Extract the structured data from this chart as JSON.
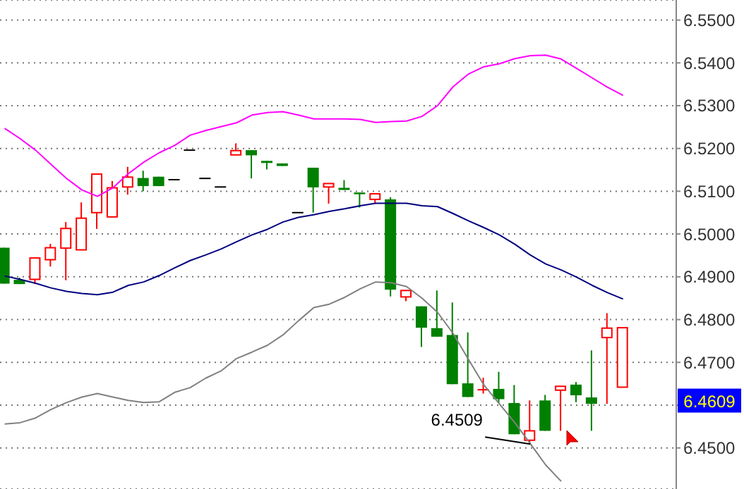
{
  "chart_data": {
    "type": "candlestick",
    "categories": [
      null,
      null,
      null,
      null,
      null,
      null,
      null,
      null,
      null,
      null,
      null,
      null,
      null,
      null,
      null,
      null,
      null,
      null,
      null,
      null,
      null,
      null,
      null,
      null,
      null,
      null,
      null,
      null,
      null,
      null,
      null,
      null,
      null,
      null,
      null,
      null,
      null,
      null,
      null,
      null,
      null
    ],
    "ohlc": [
      [
        6.4968,
        6.4968,
        6.4884,
        6.4884
      ],
      [
        6.4893,
        6.4898,
        6.4883,
        6.4883
      ],
      [
        6.4894,
        6.4944,
        6.4883,
        6.4944
      ],
      [
        6.494,
        6.4977,
        6.4924,
        6.4968
      ],
      [
        6.4967,
        6.5028,
        6.4892,
        6.5013
      ],
      [
        6.4963,
        6.5074,
        6.4963,
        6.5037
      ],
      [
        6.505,
        6.514,
        6.5012,
        6.514
      ],
      [
        6.504,
        6.5124,
        6.504,
        6.5108
      ],
      [
        6.511,
        6.5157,
        6.5092,
        6.5133
      ],
      [
        6.5131,
        6.5148,
        6.51,
        6.5112
      ],
      [
        6.5134,
        6.5134,
        6.5112,
        6.5112
      ],
      [
        6.5127,
        6.5127,
        6.5127,
        6.5127
      ],
      [
        6.5196,
        6.5196,
        6.5196,
        6.5196
      ],
      [
        6.513,
        6.513,
        6.513,
        6.513
      ],
      [
        6.511,
        6.511,
        6.511,
        6.511
      ],
      [
        6.5185,
        6.5212,
        6.5185,
        6.5195
      ],
      [
        6.5196,
        6.5196,
        6.513,
        6.5184
      ],
      [
        6.5171,
        6.5171,
        6.5151,
        6.5166
      ],
      [
        6.5165,
        6.5165,
        6.5159,
        6.5159
      ],
      [
        6.505,
        6.505,
        6.505,
        6.505
      ],
      [
        6.5155,
        6.5155,
        6.505,
        6.5109
      ],
      [
        6.511,
        6.5118,
        6.5071,
        6.5118
      ],
      [
        6.5108,
        6.5126,
        6.5103,
        6.5103
      ],
      [
        6.5097,
        6.5097,
        6.5062,
        6.5093
      ],
      [
        6.5081,
        6.5094,
        6.5071,
        6.5094
      ],
      [
        6.5081,
        6.5086,
        6.4854,
        6.487
      ],
      [
        6.4853,
        6.4868,
        6.4843,
        6.4868
      ],
      [
        6.4831,
        6.4831,
        6.4736,
        6.4781
      ],
      [
        6.478,
        6.4868,
        6.476,
        6.476
      ],
      [
        6.4764,
        6.484,
        6.4649,
        6.4649
      ],
      [
        6.4651,
        6.477,
        6.4619,
        6.4619
      ],
      [
        6.4636,
        6.4664,
        6.4627,
        6.4636
      ],
      [
        6.4638,
        6.4678,
        6.4605,
        6.4614
      ],
      [
        6.4605,
        6.4647,
        6.4532,
        6.4532
      ],
      [
        6.4518,
        6.4611,
        6.4509,
        6.454
      ],
      [
        6.4611,
        6.4624,
        6.454,
        6.454
      ],
      [
        6.4635,
        6.4644,
        6.454,
        6.4644
      ],
      [
        6.4648,
        6.4654,
        6.4607,
        6.4623
      ],
      [
        6.4618,
        6.4728,
        6.454,
        6.4603
      ],
      [
        6.4758,
        6.4815,
        6.4603,
        6.478
      ],
      [
        6.4642,
        6.4781,
        6.4642,
        6.4781
      ]
    ],
    "colors": [
      "#008000",
      "#008000",
      "#ff0000",
      "#ff0000",
      "#ff0000",
      "#ff0000",
      "#ff0000",
      "#ff0000",
      "#ff0000",
      "#008000",
      "#008000",
      "#000000",
      "#000000",
      "#000000",
      "#000000",
      "#ff0000",
      "#008000",
      "#008000",
      "#008000",
      "#000000",
      "#008000",
      "#ff0000",
      "#008000",
      "#008000",
      "#ff0000",
      "#008000",
      "#ff0000",
      "#008000",
      "#008000",
      "#008000",
      "#008000",
      "#ff0000",
      "#008000",
      "#008000",
      "#ff0000",
      "#008000",
      "#ff0000",
      "#008000",
      "#008000",
      "#ff0000",
      "#ff0000"
    ],
    "series": [
      {
        "type": "line",
        "color": "#ff00ff",
        "values": [
          6.5247,
          6.5223,
          6.5196,
          6.5163,
          6.513,
          6.5103,
          6.5088,
          6.5108,
          6.5141,
          6.5168,
          6.519,
          6.5207,
          6.5231,
          6.5242,
          6.5251,
          6.526,
          6.5278,
          6.5284,
          6.5286,
          6.5278,
          6.5269,
          6.5269,
          6.5269,
          6.5268,
          6.5261,
          6.5263,
          6.5264,
          6.5275,
          6.53,
          6.5344,
          6.5374,
          6.5391,
          6.5398,
          6.541,
          6.5417,
          6.5418,
          6.5409,
          6.5387,
          6.5365,
          6.5343,
          6.5324
        ]
      },
      {
        "type": "line",
        "color": "#000080",
        "values": [
          6.4902,
          6.4894,
          6.4885,
          6.4874,
          6.4866,
          6.4861,
          6.4858,
          6.4864,
          6.488,
          6.4888,
          6.4903,
          6.4921,
          6.4938,
          6.4951,
          6.4965,
          6.4982,
          6.4998,
          6.5011,
          6.5028,
          6.5039,
          6.5045,
          6.5053,
          6.5059,
          6.5066,
          6.5072,
          6.5072,
          6.5072,
          6.5066,
          6.5064,
          6.5048,
          6.5031,
          6.5015,
          6.4998,
          6.4976,
          6.4951,
          6.493,
          6.4916,
          6.4899,
          6.488,
          6.4863,
          6.4848
        ]
      },
      {
        "type": "line",
        "color": "#808080",
        "values": [
          6.4556,
          6.4559,
          6.457,
          6.459,
          6.4606,
          6.4619,
          6.4627,
          6.4619,
          6.4611,
          6.4606,
          6.4608,
          6.463,
          6.4641,
          6.4663,
          6.468,
          6.4709,
          6.4724,
          6.474,
          6.4764,
          6.4797,
          6.4828,
          6.4836,
          6.4852,
          6.4872,
          6.4888,
          6.4886,
          6.4877,
          6.485,
          6.4817,
          6.4768,
          6.4707,
          6.4647,
          6.4603,
          6.4559,
          6.451,
          6.446,
          6.4422,
          null,
          null,
          null,
          null
        ]
      }
    ],
    "ylim": [
      6.4404,
      6.5547
    ],
    "yticks": [
      {
        "value": 6.45,
        "label": "6.4500"
      },
      {
        "value": 6.46,
        "label": null
      },
      {
        "value": 6.47,
        "label": "6.4700"
      },
      {
        "value": 6.48,
        "label": "6.4800"
      },
      {
        "value": 6.49,
        "label": "6.4900"
      },
      {
        "value": 6.5,
        "label": "6.5000"
      },
      {
        "value": 6.51,
        "label": "6.5100"
      },
      {
        "value": 6.52,
        "label": "6.5200"
      },
      {
        "value": 6.53,
        "label": "6.5300"
      },
      {
        "value": 6.54,
        "label": "6.5400"
      },
      {
        "value": 6.55,
        "label": "6.5500"
      }
    ],
    "grid": "y",
    "tick_labels": "y",
    "annotations": [
      "6.4509",
      "6.4609"
    ]
  }
}
